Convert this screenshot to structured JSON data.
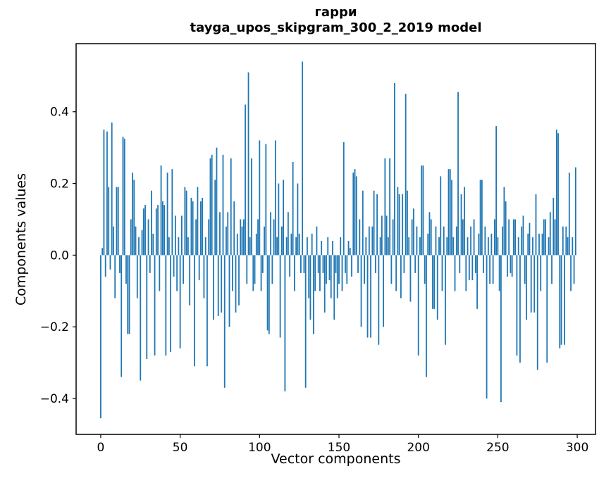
{
  "chart_data": {
    "type": "bar",
    "title": "гарри",
    "subtitle": "tayga_upos_skipgram_300_2_2019 model",
    "xlabel": "Vector components",
    "ylabel": "Components values",
    "bar_color": "#1f77b4",
    "axis_color": "#000000",
    "background": "#ffffff",
    "grid": false,
    "legend": "none",
    "xlim": [
      -15.5,
      311.5
    ],
    "ylim": [
      -0.5,
      0.59
    ],
    "x_ticks": [
      0,
      50,
      100,
      150,
      200,
      250,
      300
    ],
    "x_tick_labels": [
      "0",
      "50",
      "100",
      "150",
      "200",
      "250",
      "300"
    ],
    "y_ticks": [
      -0.4,
      -0.2,
      0.0,
      0.2,
      0.4
    ],
    "y_tick_labels": [
      "−0.4",
      "−0.2",
      "0.0",
      "0.2",
      "0.4"
    ],
    "x_start": 0,
    "bar_width_data_units": 0.8,
    "values": [
      -0.455,
      0.02,
      0.35,
      -0.06,
      0.345,
      0.19,
      -0.04,
      0.37,
      0.08,
      -0.12,
      0.19,
      0.19,
      -0.05,
      -0.34,
      0.33,
      0.325,
      -0.08,
      -0.22,
      -0.22,
      0.1,
      0.23,
      0.21,
      0.08,
      -0.12,
      0.05,
      -0.35,
      0.07,
      0.13,
      0.14,
      -0.29,
      0.1,
      -0.05,
      0.18,
      0.06,
      -0.28,
      0.13,
      0.14,
      -0.1,
      0.25,
      0.15,
      0.14,
      -0.28,
      0.23,
      0.05,
      -0.27,
      0.24,
      -0.06,
      0.11,
      -0.1,
      0.05,
      -0.26,
      0.11,
      -0.08,
      0.19,
      0.18,
      0.05,
      -0.14,
      0.16,
      0.15,
      -0.31,
      0.1,
      0.19,
      -0.07,
      0.15,
      0.16,
      -0.12,
      0.05,
      -0.31,
      0.1,
      0.27,
      0.28,
      -0.18,
      0.21,
      0.3,
      -0.17,
      0.12,
      -0.16,
      0.28,
      -0.37,
      0.08,
      0.12,
      -0.2,
      0.27,
      -0.1,
      0.15,
      -0.16,
      0.06,
      -0.14,
      0.1,
      0.08,
      0.1,
      0.42,
      -0.08,
      0.51,
      0.05,
      0.27,
      -0.1,
      -0.08,
      0.06,
      0.1,
      0.32,
      -0.1,
      -0.05,
      0.08,
      0.31,
      -0.21,
      -0.22,
      0.12,
      -0.08,
      0.1,
      0.32,
      0.05,
      0.2,
      -0.23,
      0.08,
      0.21,
      -0.38,
      0.05,
      0.12,
      -0.06,
      0.06,
      0.26,
      -0.1,
      0.05,
      0.2,
      0.06,
      -0.05,
      0.54,
      -0.05,
      -0.37,
      0.05,
      -0.12,
      -0.18,
      0.06,
      -0.22,
      -0.1,
      0.08,
      -0.05,
      -0.1,
      0.04,
      -0.05,
      -0.16,
      -0.08,
      0.05,
      -0.07,
      -0.12,
      0.04,
      -0.18,
      -0.05,
      -0.12,
      -0.08,
      0.05,
      -0.1,
      0.315,
      -0.05,
      -0.08,
      0.04,
      0.02,
      -0.06,
      0.23,
      0.24,
      0.22,
      -0.05,
      0.1,
      -0.2,
      0.18,
      -0.08,
      0.05,
      -0.23,
      0.08,
      -0.23,
      0.08,
      0.18,
      -0.05,
      0.17,
      -0.25,
      0.05,
      0.11,
      -0.2,
      0.27,
      0.11,
      0.05,
      0.27,
      -0.08,
      0.1,
      0.48,
      -0.1,
      0.19,
      0.17,
      -0.12,
      0.17,
      -0.05,
      0.45,
      0.18,
      0.05,
      -0.13,
      0.1,
      0.13,
      -0.05,
      0.08,
      -0.28,
      0.05,
      0.25,
      0.25,
      -0.08,
      -0.34,
      0.06,
      0.12,
      0.1,
      -0.15,
      -0.15,
      0.08,
      -0.18,
      0.05,
      0.22,
      -0.1,
      0.08,
      -0.25,
      0.05,
      0.24,
      0.24,
      0.21,
      0.05,
      -0.1,
      0.08,
      0.455,
      -0.05,
      0.17,
      0.1,
      0.19,
      -0.1,
      0.05,
      -0.07,
      0.08,
      -0.07,
      0.1,
      -0.05,
      -0.15,
      0.06,
      0.21,
      0.21,
      -0.05,
      0.08,
      -0.4,
      0.05,
      -0.08,
      0.06,
      -0.08,
      0.1,
      0.36,
      0.05,
      -0.1,
      -0.41,
      0.08,
      0.19,
      0.15,
      -0.06,
      0.1,
      -0.05,
      -0.06,
      0.1,
      0.1,
      -0.28,
      0.05,
      -0.3,
      0.08,
      0.11,
      -0.08,
      -0.18,
      0.06,
      0.09,
      -0.16,
      0.05,
      -0.16,
      0.17,
      -0.32,
      0.06,
      -0.1,
      0.06,
      0.1,
      0.1,
      -0.3,
      0.05,
      0.12,
      -0.08,
      0.16,
      0.1,
      0.35,
      0.34,
      -0.26,
      -0.25,
      0.08,
      -0.25,
      0.08,
      0.05,
      0.23,
      -0.1,
      0.05,
      -0.08,
      0.245
    ]
  }
}
